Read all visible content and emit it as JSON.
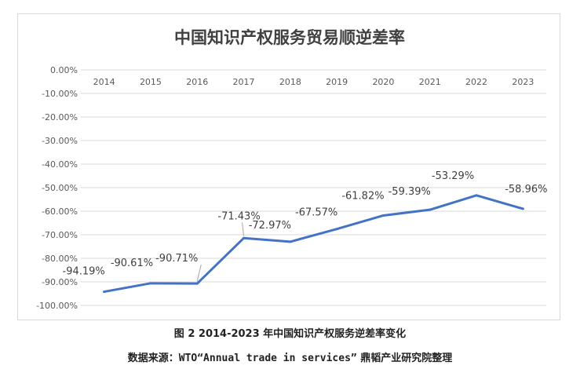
{
  "chart_data": {
    "type": "line",
    "title": "中国知识产权服务贸易顺逆差率",
    "categories": [
      "2014",
      "2015",
      "2016",
      "2017",
      "2018",
      "2019",
      "2020",
      "2021",
      "2022",
      "2023"
    ],
    "values": [
      -94.19,
      -90.61,
      -90.71,
      -71.43,
      -72.97,
      -67.57,
      -61.82,
      -59.39,
      -53.29,
      -58.96
    ],
    "data_labels": [
      "-94.19%",
      "-90.61%",
      "-90.71%",
      "-71.43%",
      "-72.97%",
      "-67.57%",
      "-61.82%",
      "-59.39%",
      "-53.29%",
      "-58.96%"
    ],
    "y_ticks": [
      "0.00%",
      "-10.00%",
      "-20.00%",
      "-30.00%",
      "-40.00%",
      "-50.00%",
      "-60.00%",
      "-70.00%",
      "-80.00%",
      "-90.00%",
      "-100.00%"
    ],
    "ylim": [
      -100,
      0
    ],
    "grid": true,
    "line_color": "#4472c4",
    "grid_color": "#d9d9d9"
  },
  "caption": "图 2  2014-2023 年中国知识产权服务逆差率变化",
  "source_prefix": "数据来源：",
  "source_mono": "WTO“Annual trade in services”",
  "source_suffix": " 鼎韬产业研究院整理"
}
